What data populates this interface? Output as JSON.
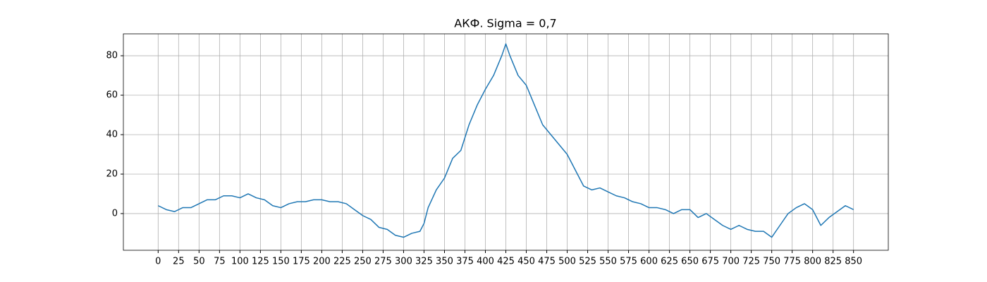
{
  "chart_data": {
    "type": "line",
    "title": "АКФ. Sigma = 0,7",
    "x": [
      0,
      10,
      20,
      30,
      40,
      50,
      60,
      70,
      80,
      90,
      100,
      110,
      120,
      130,
      140,
      150,
      160,
      170,
      180,
      190,
      200,
      210,
      220,
      230,
      240,
      250,
      260,
      270,
      280,
      290,
      300,
      310,
      320,
      325,
      330,
      340,
      350,
      360,
      370,
      380,
      390,
      400,
      410,
      420,
      425,
      430,
      440,
      450,
      460,
      470,
      480,
      490,
      500,
      510,
      520,
      530,
      540,
      550,
      560,
      570,
      580,
      590,
      600,
      610,
      620,
      630,
      640,
      650,
      660,
      670,
      680,
      690,
      700,
      710,
      720,
      730,
      740,
      750,
      760,
      770,
      780,
      790,
      800,
      810,
      820,
      830,
      840,
      850
    ],
    "values": [
      4,
      2,
      1,
      3,
      3,
      5,
      7,
      7,
      9,
      9,
      8,
      10,
      8,
      7,
      4,
      3,
      5,
      6,
      6,
      7,
      7,
      6,
      6,
      5,
      2,
      -1,
      -3,
      -7,
      -8,
      -11,
      -12,
      -10,
      -9,
      -5,
      3,
      12,
      18,
      28,
      32,
      45,
      55,
      63,
      70,
      80,
      86,
      80,
      70,
      65,
      55,
      45,
      40,
      35,
      30,
      22,
      14,
      12,
      13,
      11,
      9,
      8,
      6,
      5,
      3,
      3,
      2,
      0,
      2,
      2,
      -2,
      0,
      -3,
      -6,
      -8,
      -6,
      -8,
      -9,
      -9,
      -12,
      -6,
      0,
      3,
      5,
      2,
      -6,
      -2,
      1,
      4,
      2
    ],
    "color": "#1f77b4",
    "xlim": [
      -42.5,
      892.5
    ],
    "xticks": [
      0,
      25,
      50,
      75,
      100,
      125,
      150,
      175,
      200,
      225,
      250,
      275,
      300,
      325,
      350,
      375,
      400,
      425,
      450,
      475,
      500,
      525,
      550,
      575,
      600,
      625,
      650,
      675,
      700,
      725,
      750,
      775,
      800,
      825,
      850
    ],
    "ylim": [
      -18.6,
      91.1
    ],
    "yticks": [
      0,
      20,
      40,
      60,
      80
    ],
    "grid": true
  }
}
